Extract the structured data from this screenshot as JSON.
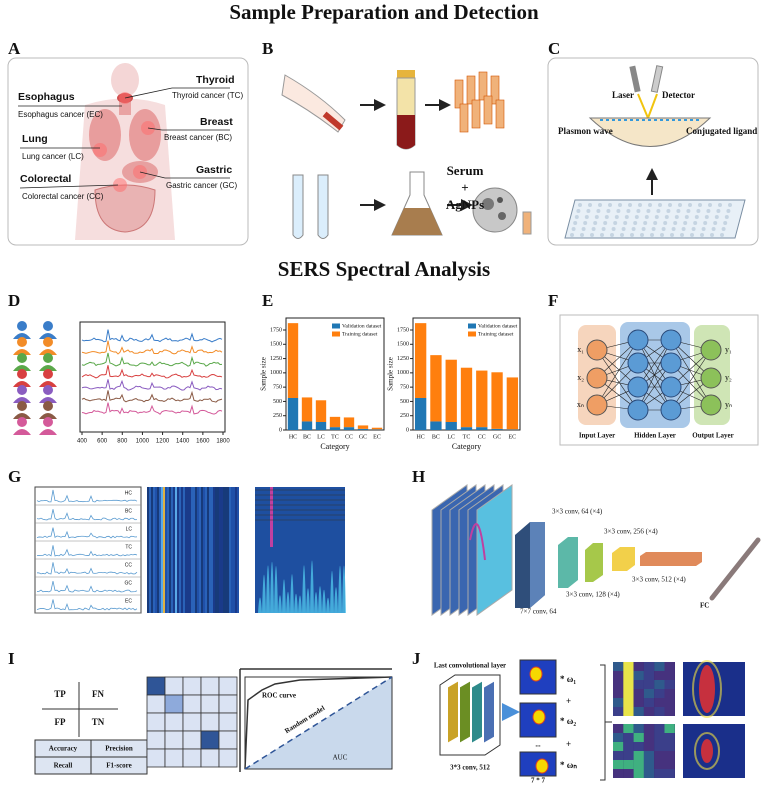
{
  "titles": {
    "top": "Sample Preparation and Detection",
    "middle": "SERS Spectral Analysis"
  },
  "panel_labels": [
    "A",
    "B",
    "C",
    "D",
    "E",
    "F",
    "G",
    "H",
    "I",
    "J"
  ],
  "panel_a": {
    "organs": [
      {
        "name": "Thyroid",
        "cancer": "Thyroid cancer (TC)"
      },
      {
        "name": "Esophagus",
        "cancer": "Esophagus cancer (EC)"
      },
      {
        "name": "Breast",
        "cancer": "Breast cancer (BC)"
      },
      {
        "name": "Lung",
        "cancer": "Lung cancer (LC)"
      },
      {
        "name": "Gastric",
        "cancer": "Gastric cancer (GC)"
      },
      {
        "name": "Colorectal",
        "cancer": "Colorectal cancer (CC)"
      }
    ]
  },
  "panel_b": {
    "mix": [
      "Serum",
      "+",
      "AgNPs"
    ]
  },
  "panel_c": {
    "labels": [
      "Laser",
      "Detector",
      "Plasmon wave",
      "Conjugated ligand"
    ]
  },
  "panel_d": {
    "xticks": [
      400,
      600,
      800,
      1000,
      1200,
      1400,
      1600,
      1800
    ]
  },
  "panel_e": {
    "charts": [
      {
        "type": "stacked_bar",
        "x_label": "Category",
        "y_label": "Sample size",
        "categories": [
          "HC",
          "BC",
          "LC",
          "TC",
          "CC",
          "GC",
          "EC"
        ],
        "ylim": [
          0,
          1960
        ],
        "yticks": [
          0,
          250,
          500,
          750,
          1000,
          1250,
          1500,
          1750
        ],
        "series": [
          {
            "name": "Validation dataset",
            "color": "#1f77b4",
            "values": [
              560,
              150,
              140,
              50,
              50,
              20,
              10
            ]
          },
          {
            "name": "Training dataset",
            "color": "#ff7f0e",
            "values": [
              1310,
              420,
              380,
              180,
              170,
              60,
              30
            ]
          }
        ]
      },
      {
        "type": "stacked_bar",
        "x_label": "Category",
        "y_label": "Sample size",
        "categories": [
          "HC",
          "BC",
          "LC",
          "TC",
          "CC",
          "GC",
          "EC"
        ],
        "ylim": [
          0,
          1960
        ],
        "yticks": [
          0,
          250,
          500,
          750,
          1000,
          1250,
          1500,
          1750
        ],
        "series": [
          {
            "name": "Validation dataset",
            "color": "#1f77b4",
            "values": [
              560,
              150,
              140,
              50,
              50,
              20,
              10
            ]
          },
          {
            "name": "Training dataset",
            "color": "#ff7f0e",
            "values": [
              1310,
              1160,
              1090,
              1040,
              990,
              990,
              910
            ]
          }
        ]
      }
    ]
  },
  "panel_f": {
    "inputs": [
      "x₁",
      "x₂",
      "xₙ"
    ],
    "outputs": [
      "y₁",
      "y₂",
      "yₙ"
    ],
    "layers": [
      "Input Layer",
      "Hidden Layer",
      "Output Layer"
    ]
  },
  "panel_g": {
    "classes": [
      "HC",
      "BC",
      "LC",
      "TC",
      "CC",
      "GC",
      "EC"
    ]
  },
  "panel_h": {
    "layers": [
      "7×7 conv, 64",
      "3×3 conv, 64 (×4)",
      "3×3 conv, 128 (×4)",
      "3×3 conv, 256 (×4)",
      "3×3 conv, 512 (×4)"
    ],
    "fc": "FC"
  },
  "panel_i": {
    "matrix": [
      "TP",
      "FN",
      "FP",
      "TN"
    ],
    "metrics": [
      "Accuracy",
      "Precision",
      "Recall",
      "F1-score"
    ],
    "roc": [
      "ROC curve",
      "Random model",
      "AUC"
    ]
  },
  "panel_j": {
    "title": "Last convolutional layer",
    "conv": "3*3 conv, 512",
    "size": "7 * 7",
    "ellipsis": "...",
    "weights": [
      "* ω₁",
      "+",
      "* ω₂",
      "+",
      "* ωₙ"
    ]
  }
}
